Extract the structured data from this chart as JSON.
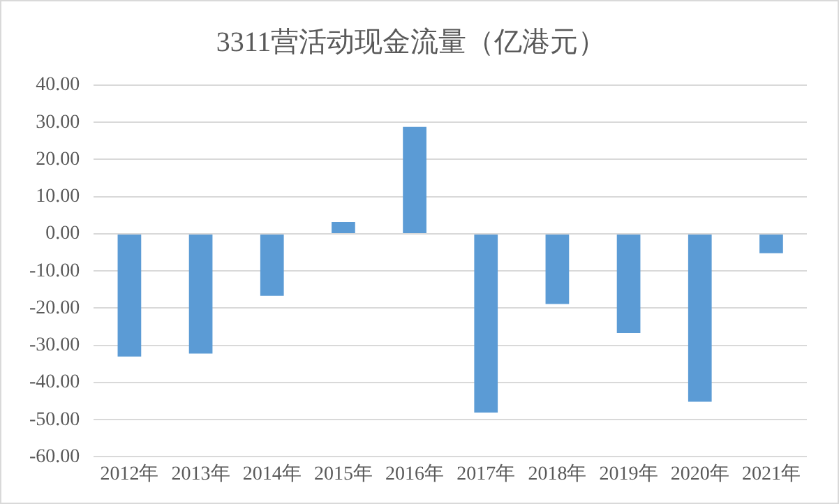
{
  "chart_data": {
    "type": "bar",
    "title": "3311营活动现金流量（亿港元）",
    "categories": [
      "2012年",
      "2013年",
      "2014年",
      "2015年",
      "2016年",
      "2017年",
      "2018年",
      "2019年",
      "2020年",
      "2021年"
    ],
    "values": [
      -33.0,
      -32.2,
      -16.7,
      3.2,
      28.8,
      -48.1,
      -18.9,
      -26.7,
      -45.2,
      -5.2
    ],
    "color": "#5b9bd5",
    "ylim": [
      -60,
      40
    ],
    "yticks": [
      {
        "value": -60,
        "label": "-60.00"
      },
      {
        "value": -50,
        "label": "-50.00"
      },
      {
        "value": -40,
        "label": "-40.00"
      },
      {
        "value": -30,
        "label": "-30.00"
      },
      {
        "value": -20,
        "label": "-20.00"
      },
      {
        "value": -10,
        "label": "-10.00"
      },
      {
        "value": 0,
        "label": "0.00"
      },
      {
        "value": 10,
        "label": "10.00"
      },
      {
        "value": 20,
        "label": "20.00"
      },
      {
        "value": 30,
        "label": "30.00"
      },
      {
        "value": 40,
        "label": "40.00"
      }
    ],
    "grid": "y"
  }
}
